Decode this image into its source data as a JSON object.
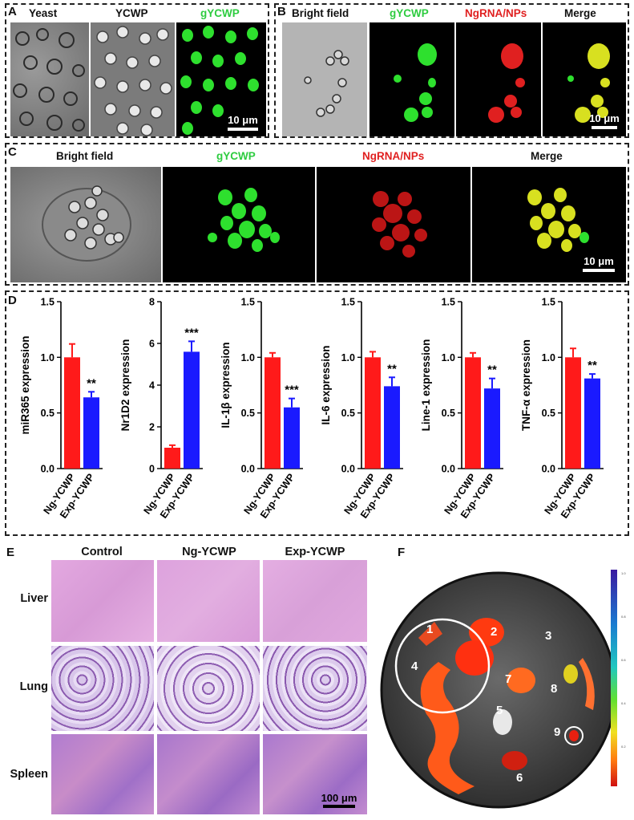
{
  "panelA": {
    "letter": "A",
    "labels": [
      "Yeast",
      "YCWP",
      "gYCWP"
    ],
    "scale": "10 μm"
  },
  "panelB": {
    "letter": "B",
    "labels": [
      "Bright field",
      "gYCWP",
      "NgRNA/NPs",
      "Merge"
    ],
    "scale": "10 μm"
  },
  "panelC": {
    "letter": "C",
    "labels": [
      "Bright field",
      "gYCWP",
      "NgRNA/NPs",
      "Merge"
    ],
    "scale": "10 μm"
  },
  "panelD": {
    "letter": "D"
  },
  "panelE": {
    "letter": "E",
    "columns": [
      "Control",
      "Ng-YCWP",
      "Exp-YCWP"
    ],
    "rows": [
      "Liver",
      "Lung",
      "Spleen"
    ],
    "scale": "100 μm"
  },
  "panelF": {
    "letter": "F",
    "organs": [
      "1",
      "2",
      "3",
      "4",
      "5",
      "6",
      "7",
      "8",
      "9"
    ],
    "colorbar_ticks": [
      "1.0",
      "0.8",
      "0.6",
      "0.4",
      "0.2"
    ]
  },
  "colors": {
    "ng": "#ff1a1a",
    "exp": "#1a1aff"
  },
  "chart_data": [
    {
      "type": "bar",
      "ylabel": "miR365 expression",
      "categories": [
        "Ng-YCWP",
        "Exp-YCWP"
      ],
      "values": [
        1.0,
        0.64
      ],
      "errors": [
        0.12,
        0.05
      ],
      "ylim": [
        0,
        1.5
      ],
      "yticks": [
        "0.0",
        "0.5",
        "1.0",
        "1.5"
      ],
      "significance": "**"
    },
    {
      "type": "bar",
      "ylabel": "Nr1D2 expression",
      "categories": [
        "Ng-YCWP",
        "Exp-YCWP"
      ],
      "values": [
        1.0,
        5.6
      ],
      "errors": [
        0.12,
        0.5
      ],
      "ylim": [
        0,
        8
      ],
      "yticks": [
        "0",
        "2",
        "4",
        "6",
        "8"
      ],
      "significance": "***"
    },
    {
      "type": "bar",
      "ylabel": "IL-1β expression",
      "categories": [
        "Ng-YCWP",
        "Exp-YCWP"
      ],
      "values": [
        1.0,
        0.55
      ],
      "errors": [
        0.04,
        0.08
      ],
      "ylim": [
        0,
        1.5
      ],
      "yticks": [
        "0.0",
        "0.5",
        "1.0",
        "1.5"
      ],
      "significance": "***"
    },
    {
      "type": "bar",
      "ylabel": "IL-6 expression",
      "categories": [
        "Ng-YCWP",
        "Exp-YCWP"
      ],
      "values": [
        1.0,
        0.74
      ],
      "errors": [
        0.05,
        0.08
      ],
      "ylim": [
        0,
        1.5
      ],
      "yticks": [
        "0.0",
        "0.5",
        "1.0",
        "1.5"
      ],
      "significance": "**"
    },
    {
      "type": "bar",
      "ylabel": "Line-1 expression",
      "categories": [
        "Ng-YCWP",
        "Exp-YCWP"
      ],
      "values": [
        1.0,
        0.72
      ],
      "errors": [
        0.04,
        0.09
      ],
      "ylim": [
        0,
        1.5
      ],
      "yticks": [
        "0.0",
        "0.5",
        "1.0",
        "1.5"
      ],
      "significance": "**"
    },
    {
      "type": "bar",
      "ylabel": "TNF-α expression",
      "categories": [
        "Ng-YCWP",
        "Exp-YCWP"
      ],
      "values": [
        1.0,
        0.81
      ],
      "errors": [
        0.08,
        0.04
      ],
      "ylim": [
        0,
        1.5
      ],
      "yticks": [
        "0.0",
        "0.5",
        "1.0",
        "1.5"
      ],
      "significance": "**"
    }
  ]
}
